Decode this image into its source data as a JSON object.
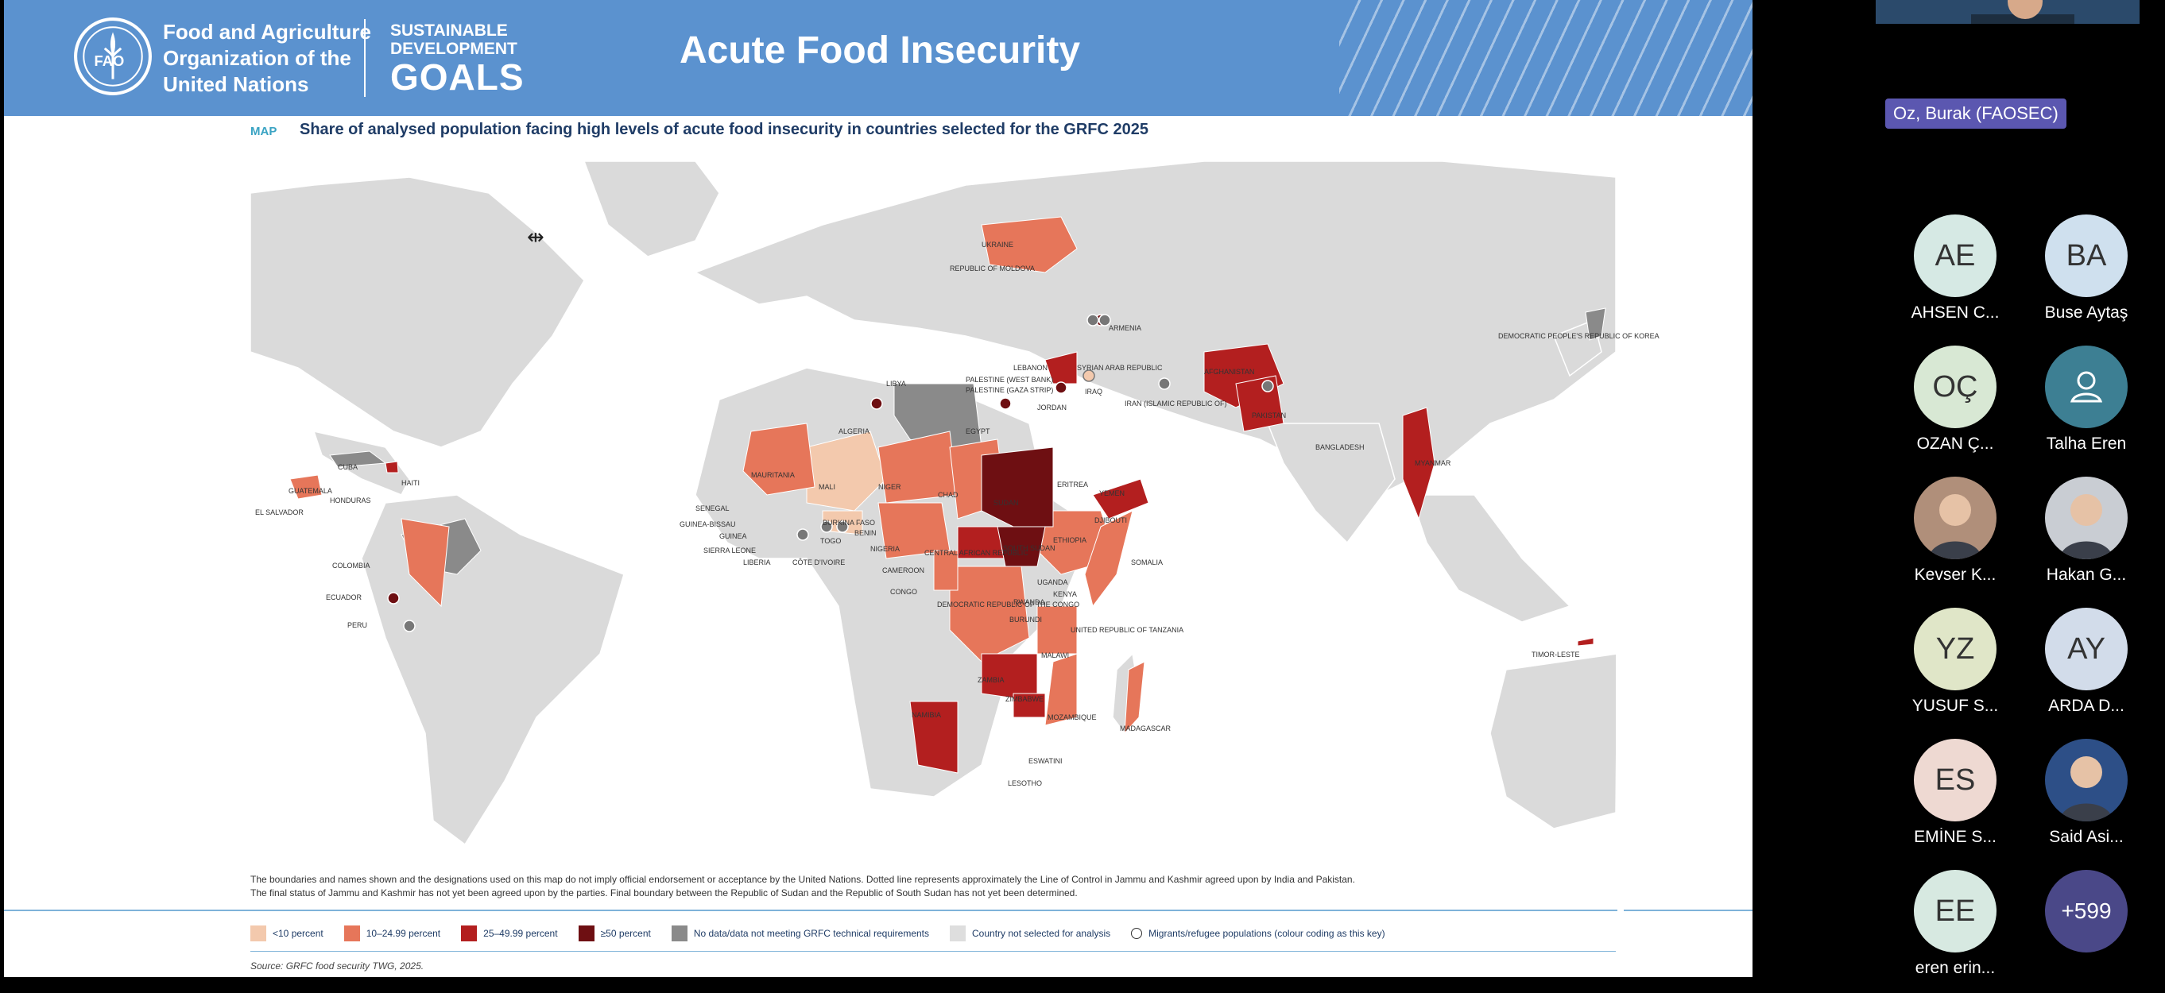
{
  "slide": {
    "org_name": [
      "Food and Agriculture",
      "Organization of the",
      "United Nations"
    ],
    "fao_logo_text": "FAO",
    "sdg_logo": [
      "SUSTAINABLE",
      "DEVELOPMENT",
      "GOALS"
    ],
    "title": "Acute Food Insecurity",
    "map_tag": "MAP",
    "map_heading": "Share of analysed population facing high levels of acute food insecurity in countries selected for the GRFC 2025",
    "disclaimer": [
      "The boundaries and names shown and the designations used on this map do not imply official endorsement or acceptance by the United Nations. Dotted line represents approximately the Line of Control in Jammu and Kashmir agreed upon by India and Pakistan.",
      "The final status of Jammu and Kashmir has not yet been agreed upon by the parties. Final boundary between the Republic of Sudan and the Republic of South Sudan has not yet been determined."
    ],
    "legend": [
      {
        "label": "<10 percent",
        "color": "#f3c9ad"
      },
      {
        "label": "10–24.99 percent",
        "color": "#e6765a"
      },
      {
        "label": "25–49.99 percent",
        "color": "#b31f1f"
      },
      {
        "label": "≥50 percent",
        "color": "#6e0f12"
      },
      {
        "label": "No data/data not meeting GRFC technical requirements",
        "color": "#8a8a8a"
      },
      {
        "label": "Country not selected for analysis",
        "color": "#dedede"
      },
      {
        "label": "Migrants/refugee populations (colour coding as this key)",
        "color": "circle"
      }
    ],
    "source": "Source: GRFC food security TWG, 2025.",
    "country_labels": [
      "UKRAINE",
      "REPUBLIC OF MOLDOVA",
      "ARMENIA",
      "DEMOCRATIC PEOPLE'S REPUBLIC OF KOREA",
      "LEBANON",
      "SYRIAN ARAB REPUBLIC",
      "PALESTINE (WEST BANK)",
      "PALESTINE (GAZA STRIP)",
      "JORDAN",
      "IRAQ",
      "IRAN (ISLAMIC REPUBLIC OF)",
      "AFGHANISTAN",
      "PAKISTAN",
      "BANGLADESH",
      "MYANMAR",
      "LIBYA",
      "ALGERIA",
      "EGYPT",
      "CUBA",
      "HAITI",
      "GUATEMALA",
      "HONDURAS",
      "EL SALVADOR",
      "MAURITANIA",
      "MALI",
      "NIGER",
      "CHAD",
      "SUDAN",
      "ERITREA",
      "YEMEN",
      "DJIBOUTI",
      "SENEGAL",
      "GUINEA-BISSAU",
      "GUINEA",
      "SIERRA LEONE",
      "LIBERIA",
      "BURKINA FASO",
      "TOGO",
      "BENIN",
      "NIGERIA",
      "CÔTE D'IVOIRE",
      "CAMEROON",
      "CENTRAL AFRICAN REPUBLIC",
      "SOUTH SUDAN",
      "ETHIOPIA",
      "SOMALIA",
      "COLOMBIA",
      "ECUADOR",
      "PERU",
      "CONGO",
      "DEMOCRATIC REPUBLIC OF THE CONGO",
      "UGANDA",
      "KENYA",
      "RWANDA",
      "BURUNDI",
      "UNITED REPUBLIC OF TANZANIA",
      "MALAWI",
      "ZAMBIA",
      "ZIMBABWE",
      "MOZAMBIQUE",
      "NAMIBIA",
      "MADAGASCAR",
      "ESWATINI",
      "LESOTHO",
      "TIMOR-LESTE"
    ]
  },
  "meeting": {
    "active_speaker": "Oz, Burak (FAOSEC)",
    "participants": [
      {
        "initials": "AE",
        "name": "AHSEN C...",
        "bg": "#d6e9e4",
        "photo": false
      },
      {
        "initials": "BA",
        "name": "Buse Aytaş",
        "bg": "#cfe0ee",
        "photo": false
      },
      {
        "initials": "OÇ",
        "name": "OZAN Ç...",
        "bg": "#d8e8d4",
        "photo": false
      },
      {
        "initials": "",
        "name": "Talha Eren",
        "bg": "#3d7f93",
        "photo": false
      },
      {
        "initials": "",
        "name": "Kevser K...",
        "bg": "#b08f7a",
        "photo": true
      },
      {
        "initials": "",
        "name": "Hakan G...",
        "bg": "#c9cdd3",
        "photo": true
      },
      {
        "initials": "YZ",
        "name": "YUSUF S...",
        "bg": "#e0e6c8",
        "photo": false
      },
      {
        "initials": "AY",
        "name": "ARDA D...",
        "bg": "#d2dcea",
        "photo": false
      },
      {
        "initials": "ES",
        "name": "EMİNE S...",
        "bg": "#eed9d2",
        "photo": false
      },
      {
        "initials": "",
        "name": "Said Asi...",
        "bg": "#2d4f87",
        "photo": true
      },
      {
        "initials": "EE",
        "name": "eren erin...",
        "bg": "#d7e9e1",
        "photo": false
      }
    ],
    "overflow_count": "+599"
  }
}
